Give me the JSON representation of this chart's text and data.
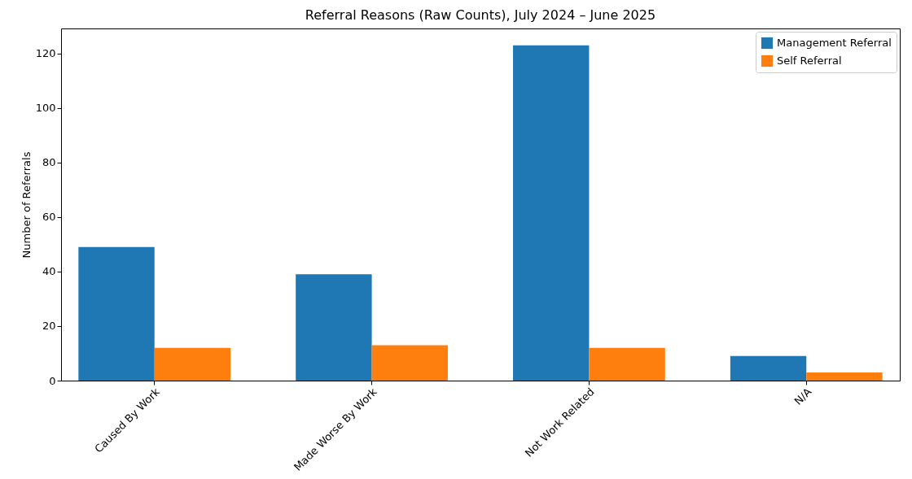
{
  "chart_data": {
    "type": "bar",
    "title": "Referral Reasons (Raw Counts), July 2024 – June 2025",
    "ylabel": "Number of Referrals",
    "categories": [
      "Caused By Work",
      "Made Worse By Work",
      "Not Work Related",
      "N/A"
    ],
    "series": [
      {
        "name": "Management Referral",
        "color": "#1f77b4",
        "values": [
          49,
          39,
          123,
          9
        ]
      },
      {
        "name": "Self Referral",
        "color": "#ff7f0e",
        "values": [
          12,
          13,
          12,
          3
        ]
      }
    ],
    "ylim": [
      0,
      129.2
    ],
    "yticks": [
      0,
      20,
      40,
      60,
      80,
      100,
      120
    ],
    "grid": false,
    "legend": "top right"
  }
}
